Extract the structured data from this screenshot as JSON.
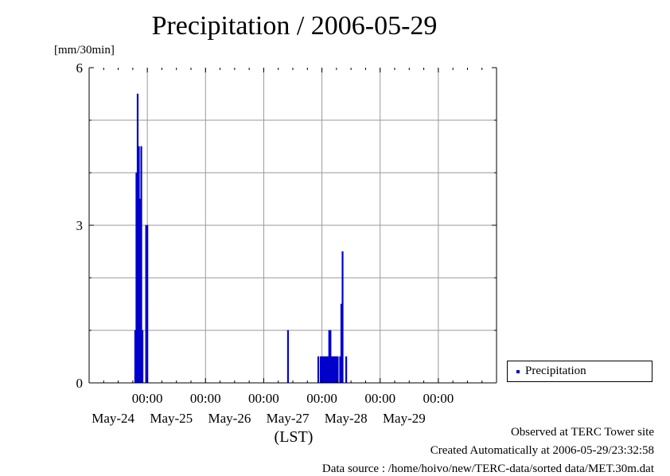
{
  "chart_data": {
    "type": "bar",
    "title": "Precipitation / 2006-05-29",
    "ylabel": "[mm/30min]",
    "xlabel": "(LST)",
    "ylim": [
      0,
      6
    ],
    "yticks": [
      0,
      3,
      6
    ],
    "xlim": [
      "2006-05-23 00:00",
      "2006-05-30 00:00"
    ],
    "xticks": [
      {
        "time": "00:00",
        "date": "May-24",
        "at": "2006-05-24 00:00"
      },
      {
        "time": "00:00",
        "date": "May-25",
        "at": "2006-05-25 00:00"
      },
      {
        "time": "00:00",
        "date": "May-26",
        "at": "2006-05-26 00:00"
      },
      {
        "time": "00:00",
        "date": "May-27",
        "at": "2006-05-27 00:00"
      },
      {
        "time": "00:00",
        "date": "May-28",
        "at": "2006-05-28 00:00"
      },
      {
        "time": "00:00",
        "date": "May-29",
        "at": "2006-05-29 00:00"
      }
    ],
    "grid": true,
    "legend_position": "right",
    "series": [
      {
        "name": "Precipitation",
        "color": "#0000cc",
        "points": [
          {
            "x": "2006-05-23 19:00",
            "y": 1.0
          },
          {
            "x": "2006-05-23 19:30",
            "y": 4.0
          },
          {
            "x": "2006-05-23 20:00",
            "y": 5.5
          },
          {
            "x": "2006-05-23 20:30",
            "y": 4.5
          },
          {
            "x": "2006-05-23 21:00",
            "y": 3.5
          },
          {
            "x": "2006-05-23 21:30",
            "y": 4.5
          },
          {
            "x": "2006-05-23 22:00",
            "y": 1.0
          },
          {
            "x": "2006-05-23 23:30",
            "y": 3.0
          },
          {
            "x": "2006-05-24 00:00",
            "y": 3.0
          },
          {
            "x": "2006-05-26 10:00",
            "y": 1.0
          },
          {
            "x": "2006-05-26 22:30",
            "y": 0.5
          },
          {
            "x": "2006-05-26 23:30",
            "y": 0.5
          },
          {
            "x": "2006-05-27 00:00",
            "y": 0.5
          },
          {
            "x": "2006-05-27 00:30",
            "y": 0.5
          },
          {
            "x": "2006-05-27 01:00",
            "y": 0.5
          },
          {
            "x": "2006-05-27 01:30",
            "y": 0.5
          },
          {
            "x": "2006-05-27 02:00",
            "y": 0.5
          },
          {
            "x": "2006-05-27 02:30",
            "y": 0.5
          },
          {
            "x": "2006-05-27 03:00",
            "y": 1.0
          },
          {
            "x": "2006-05-27 03:30",
            "y": 1.0
          },
          {
            "x": "2006-05-27 04:00",
            "y": 0.5
          },
          {
            "x": "2006-05-27 04:30",
            "y": 0.5
          },
          {
            "x": "2006-05-27 05:00",
            "y": 0.5
          },
          {
            "x": "2006-05-27 05:30",
            "y": 0.5
          },
          {
            "x": "2006-05-27 06:00",
            "y": 0.5
          },
          {
            "x": "2006-05-27 06:30",
            "y": 0.5
          },
          {
            "x": "2006-05-27 07:30",
            "y": 0.5
          },
          {
            "x": "2006-05-27 08:00",
            "y": 1.5
          },
          {
            "x": "2006-05-27 08:30",
            "y": 2.5
          },
          {
            "x": "2006-05-27 10:00",
            "y": 0.5
          }
        ]
      }
    ]
  },
  "footer": {
    "observed": "Observed at TERC Tower site",
    "created": "Created Automatically at 2006-05-29/23:32:58",
    "source": "Data source : /home/hoivo/new/TERC-data/sorted  data/MET.30m.dat"
  }
}
